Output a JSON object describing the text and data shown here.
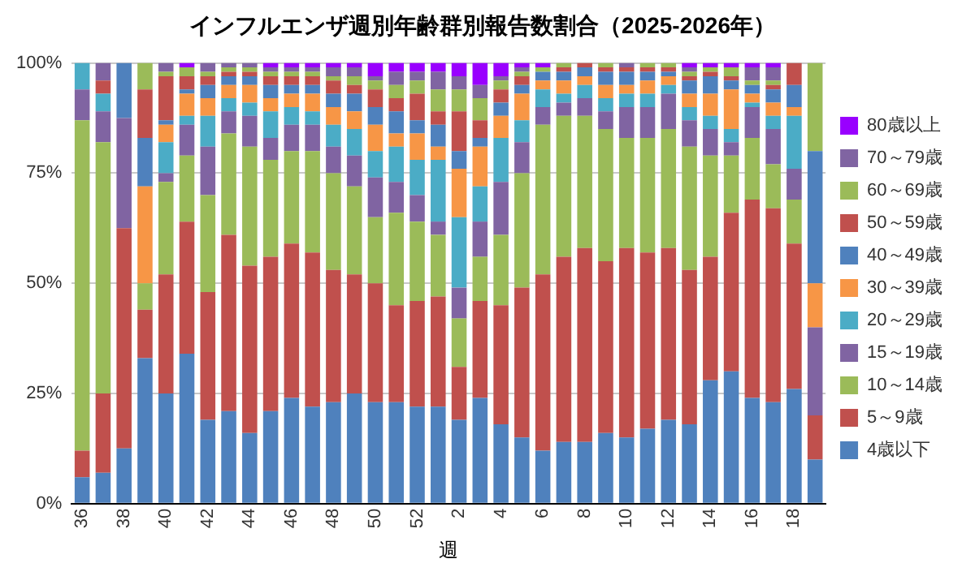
{
  "chart_data": {
    "type": "bar",
    "stacked": true,
    "title": "インフルエンザ週別年齢群別報告数割合（2025-2026年）",
    "xlabel": "週",
    "categories": [
      "36",
      null,
      "38",
      null,
      "40",
      null,
      "42",
      null,
      "44",
      null,
      "46",
      null,
      "48",
      null,
      "50",
      null,
      "52",
      null,
      "2",
      null,
      "4",
      null,
      "6",
      null,
      "8",
      null,
      "10",
      null,
      "12",
      null,
      "14",
      null,
      "16",
      null,
      "18",
      null
    ],
    "ylim": [
      0,
      100
    ],
    "yticks": [
      {
        "value": 0,
        "label": "0%"
      },
      {
        "value": 25,
        "label": "25%"
      },
      {
        "value": 50,
        "label": "50%"
      },
      {
        "value": 75,
        "label": "75%"
      },
      {
        "value": 100,
        "label": "100%"
      }
    ],
    "grid": "y",
    "legend": "right",
    "series": [
      {
        "name": "4歳以下",
        "color": "#4f81bd",
        "values": [
          6,
          7,
          12.5,
          33,
          25,
          34,
          19,
          21,
          16,
          21,
          24,
          22,
          23,
          25,
          23,
          23,
          22,
          22,
          19,
          24,
          18,
          15,
          12,
          14,
          14,
          16,
          15,
          17,
          19,
          18,
          28,
          30,
          24,
          23,
          26,
          10
        ]
      },
      {
        "name": "5～9歳",
        "color": "#c0504d",
        "values": [
          6,
          18,
          50,
          11,
          27,
          30,
          29,
          40,
          38,
          35,
          35,
          35,
          30,
          27,
          27,
          22,
          24,
          25,
          12,
          22,
          27,
          34,
          40,
          42,
          44,
          39,
          43,
          40,
          39,
          35,
          28,
          36,
          45,
          44,
          33,
          10
        ]
      },
      {
        "name": "10～14歳",
        "color": "#9bbb59",
        "values": [
          75,
          57,
          0,
          6,
          21,
          15,
          22,
          23,
          27,
          22,
          21,
          23,
          22,
          20,
          15,
          21,
          18,
          14,
          11,
          10,
          16,
          26,
          34,
          32,
          30,
          30,
          25,
          26,
          27,
          28,
          23,
          13,
          14,
          10,
          10,
          0
        ]
      },
      {
        "name": "15～19歳",
        "color": "#8064a2",
        "values": [
          7,
          7,
          25,
          0,
          2,
          7,
          11,
          5,
          7,
          5,
          6,
          6,
          6,
          7,
          9,
          7,
          6,
          3,
          7,
          8,
          12,
          7,
          4,
          3,
          4,
          4,
          7,
          7,
          8,
          6,
          6,
          3,
          7,
          8,
          7,
          20
        ]
      },
      {
        "name": "20～29歳",
        "color": "#4bacc6",
        "values": [
          6,
          4,
          0,
          0,
          7,
          2,
          7,
          3,
          3,
          6,
          4,
          3,
          5,
          6,
          6,
          8,
          8,
          14,
          16,
          8,
          10,
          5,
          4,
          2,
          3,
          3,
          3,
          3,
          2,
          3,
          3,
          3,
          1,
          3,
          12,
          0
        ]
      },
      {
        "name": "30～39歳",
        "color": "#f79646",
        "values": [
          0,
          0,
          0,
          22,
          4,
          5,
          4,
          3,
          4,
          3,
          3,
          4,
          4,
          4,
          6,
          3,
          6,
          3,
          11,
          9,
          5,
          6,
          2,
          3,
          2,
          3,
          2,
          3,
          2,
          3,
          5,
          9,
          2,
          3,
          2,
          10
        ]
      },
      {
        "name": "40～49歳",
        "color": "#4f81bd",
        "values": [
          0,
          0,
          12.5,
          11,
          1,
          1,
          3,
          2,
          2,
          3,
          2,
          2,
          3,
          4,
          4,
          5,
          3,
          5,
          4,
          2,
          3,
          2,
          2,
          2,
          2,
          3,
          3,
          2,
          1,
          3,
          4,
          2,
          2,
          3,
          5,
          30
        ]
      },
      {
        "name": "50～59歳",
        "color": "#c0504d",
        "values": [
          0,
          3,
          0,
          11,
          10,
          3,
          2,
          1,
          1,
          2,
          2,
          2,
          3,
          2,
          4,
          3,
          6,
          3,
          9,
          4,
          3,
          2,
          0,
          1,
          1,
          1,
          1,
          1,
          1,
          1,
          1,
          1,
          0,
          1,
          5,
          0
        ]
      },
      {
        "name": "60～69歳",
        "color": "#9bbb59",
        "values": [
          0,
          0,
          0,
          6,
          1,
          2,
          1,
          1,
          1,
          1,
          1,
          1,
          1,
          2,
          2,
          3,
          3,
          5,
          5,
          5,
          2,
          1,
          1,
          1,
          0,
          1,
          0,
          1,
          1,
          1,
          1,
          2,
          1,
          1,
          0,
          20
        ]
      },
      {
        "name": "70～79歳",
        "color": "#8064a2",
        "values": [
          0,
          4,
          0,
          0,
          2,
          0,
          2,
          1,
          1,
          1,
          1,
          1,
          2,
          2,
          1,
          3,
          2,
          4,
          3,
          3,
          1,
          1,
          0,
          0,
          0,
          0,
          1,
          0,
          0,
          1,
          0,
          0,
          3,
          3,
          0,
          0
        ]
      },
      {
        "name": "80歳以上",
        "color": "#9900ff",
        "values": [
          0,
          0,
          0,
          0,
          0,
          1,
          0,
          0,
          0,
          1,
          1,
          1,
          1,
          1,
          3,
          2,
          2,
          2,
          3,
          5,
          3,
          1,
          1,
          0,
          0,
          0,
          0,
          0,
          0,
          1,
          1,
          1,
          1,
          1,
          0,
          0
        ]
      }
    ]
  }
}
